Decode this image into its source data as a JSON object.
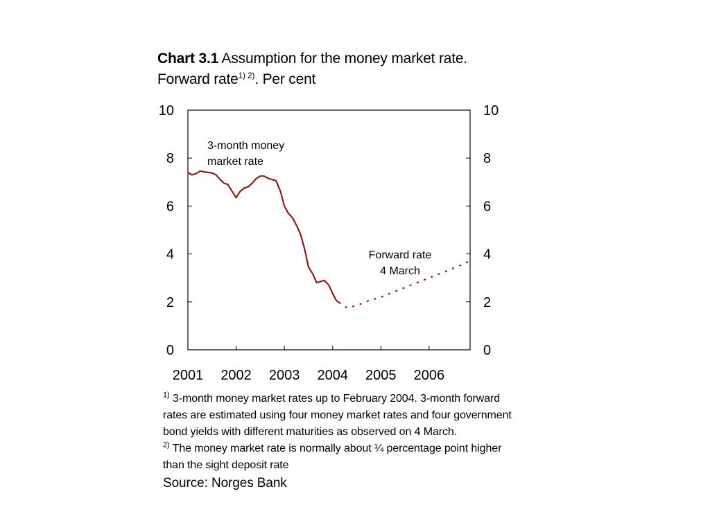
{
  "title": {
    "bold": "Chart 3.1",
    "line1_rest": " Assumption for the money market rate.",
    "line2_text": "Forward rate",
    "line2_sup": "1) 2)",
    "line2_end": ". Per cent"
  },
  "chart_data": {
    "type": "line",
    "x_unit": "year (decimal)",
    "xlim": [
      2001,
      2006.85
    ],
    "ylim": [
      0,
      10
    ],
    "x_ticks": [
      2001,
      2002,
      2003,
      2004,
      2005,
      2006
    ],
    "x_tick_labels": [
      "2001",
      "2002",
      "2003",
      "2004",
      "2005",
      "2006"
    ],
    "y_ticks": [
      0,
      2,
      4,
      6,
      8,
      10
    ],
    "y_tick_labels": [
      "0",
      "2",
      "4",
      "6",
      "8",
      "10"
    ],
    "dual_y_axis": true,
    "grid": false,
    "annotations": [
      {
        "lines": [
          "3-month money",
          "market rate"
        ],
        "near_series": "3-month money market rate"
      },
      {
        "lines": [
          "Forward rate",
          "4 March"
        ],
        "near_series": "Forward rate 4 March"
      }
    ],
    "series": [
      {
        "name": "3-month money market rate",
        "color": "#8b1a1a",
        "style": "solid",
        "x": [
          2001.0,
          2001.08,
          2001.17,
          2001.25,
          2001.33,
          2001.42,
          2001.5,
          2001.58,
          2001.67,
          2001.75,
          2001.83,
          2001.92,
          2002.0,
          2002.08,
          2002.17,
          2002.25,
          2002.33,
          2002.42,
          2002.5,
          2002.58,
          2002.67,
          2002.75,
          2002.83,
          2002.92,
          2003.0,
          2003.08,
          2003.17,
          2003.25,
          2003.33,
          2003.42,
          2003.5,
          2003.58,
          2003.67,
          2003.75,
          2003.83,
          2003.92,
          2004.0,
          2004.08,
          2004.13
        ],
        "y": [
          7.4,
          7.3,
          7.35,
          7.45,
          7.43,
          7.4,
          7.38,
          7.3,
          7.1,
          6.95,
          6.9,
          6.6,
          6.35,
          6.6,
          6.75,
          6.8,
          6.95,
          7.15,
          7.25,
          7.25,
          7.15,
          7.1,
          7.05,
          6.6,
          6.0,
          5.7,
          5.5,
          5.2,
          4.85,
          4.2,
          3.45,
          3.2,
          2.8,
          2.85,
          2.9,
          2.7,
          2.35,
          2.05,
          1.98
        ]
      },
      {
        "name": "Forward rate 4 March",
        "color": "#8b1a1a",
        "style": "dotted",
        "x": [
          2004.13,
          2004.3,
          2004.5,
          2004.75,
          2005.0,
          2005.25,
          2005.5,
          2005.75,
          2006.0,
          2006.25,
          2006.5,
          2006.75,
          2006.85
        ],
        "y": [
          1.98,
          1.75,
          1.85,
          2.05,
          2.2,
          2.4,
          2.6,
          2.8,
          3.0,
          3.2,
          3.4,
          3.6,
          3.75
        ]
      }
    ]
  },
  "notes": {
    "note1_sup": "1)",
    "note1_text": " 3-month money market rates up to February 2004. 3-month forward rates are estimated using four money market rates and four government bond yields with different maturities as observed on 4 March.",
    "note2_sup": "2)",
    "note2_text": " The money market rate is normally about ¼ percentage point higher than the sight deposit rate",
    "source": "Source: Norges Bank"
  }
}
